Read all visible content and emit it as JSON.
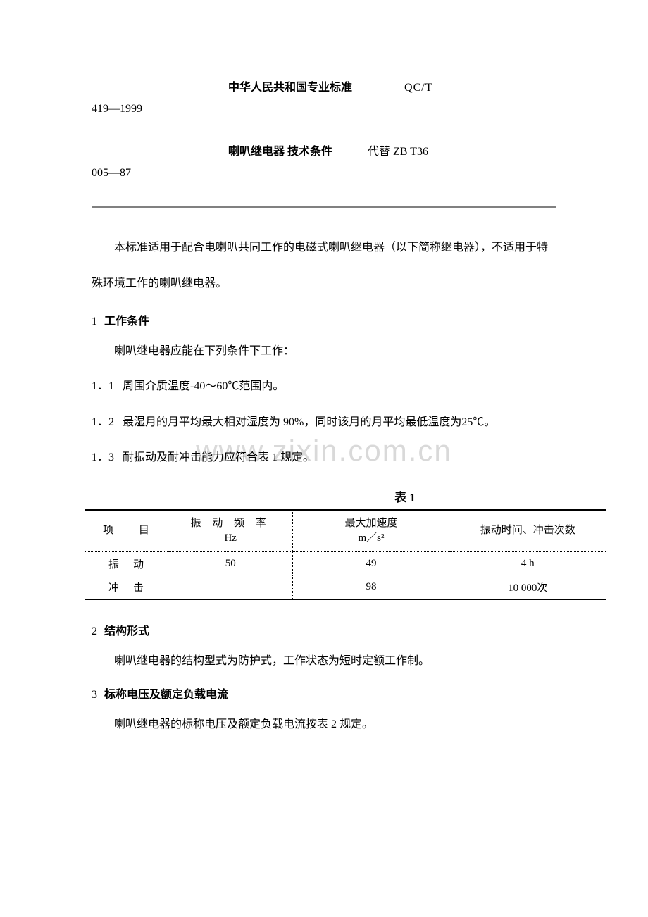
{
  "header": {
    "country_std": "中华人民共和国专业标准",
    "std_code": "QC/T",
    "std_number": "419—1999",
    "doc_title": "喇叭继电器  技术条件",
    "replace_label": "代替 ZB T36",
    "replace_number": "005—87"
  },
  "intro": "本标准适用于配合电喇叭共同工作的电磁式喇叭继电器（以下简称继电器），不适用于特殊环境工作的喇叭继电器。",
  "section1": {
    "num": "1",
    "title": "工作条件",
    "lead": "喇叭继电器应能在下列条件下工作：",
    "clause1_num": "1．1",
    "clause1_text": "周围介质温度-40～60℃范围内。",
    "clause2_num": "1．2",
    "clause2_text": "最湿月的月平均最大相对湿度为 90%，同时该月的月平均最低温度为25℃。",
    "clause3_num": "1．3",
    "clause3_text": "耐振动及耐冲击能力应符合表 1 规定。"
  },
  "table1": {
    "caption": "表 1",
    "columns": {
      "c1": "项    目",
      "c2_line1": "振 动 频 率",
      "c2_line2": "Hz",
      "c3_line1": "最大加速度",
      "c3_line2": "m／s²",
      "c4": "振动时间、冲击次数"
    },
    "rows": [
      {
        "item": "振动",
        "freq": "50",
        "accel": "49",
        "time": "4 h"
      },
      {
        "item": "冲击",
        "freq": "",
        "accel": "98",
        "time": "10 000次"
      }
    ]
  },
  "section2": {
    "num": "2",
    "title": "结构形式",
    "text": "喇叭继电器的结构型式为防护式，工作状态为短时定额工作制。"
  },
  "section3": {
    "num": "3",
    "title": "标称电压及额定负载电流",
    "text": "喇叭继电器的标称电压及额定负载电流按表 2 规定。"
  },
  "watermark": "www.zixin.com.cn"
}
